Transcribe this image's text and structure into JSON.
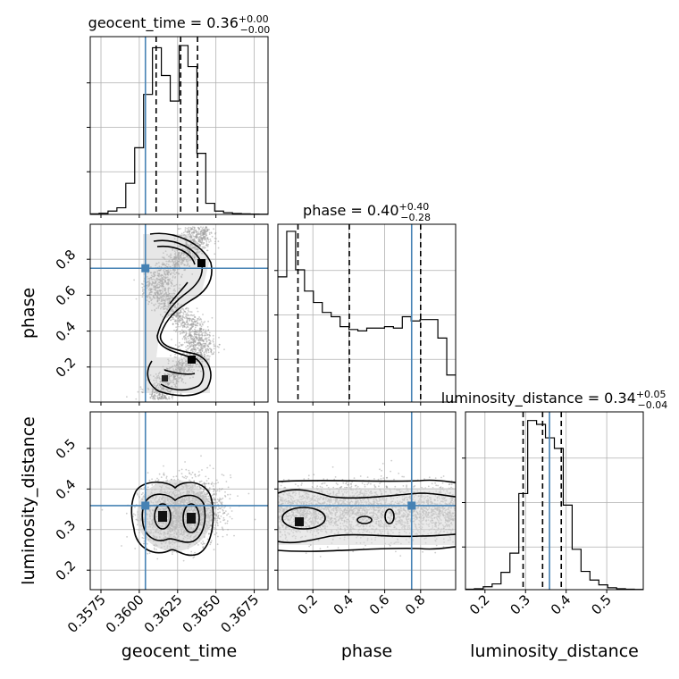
{
  "chart_data": {
    "type": "corner",
    "parameters": [
      "geocent_time",
      "phase",
      "luminosity_distance"
    ],
    "truth_color": "#4682b4",
    "panels": {
      "geocent_time": {
        "title_name": "geocent_time",
        "median": "0.36",
        "upper": "+0.00",
        "lower": "−0.00",
        "truth": 0.3604,
        "quantiles": [
          0.3611,
          0.3627,
          0.3638
        ],
        "xlim": [
          0.3568,
          0.3684
        ],
        "ticks": [
          0.3575,
          0.36,
          0.3625,
          0.365,
          0.3675
        ],
        "tick_labels": [
          "0.3575",
          "0.3600",
          "0.3625",
          "0.3650",
          "0.3675"
        ],
        "hist_edges": [
          0.3568,
          0.35738,
          0.35796,
          0.35854,
          0.35912,
          0.3597,
          0.36028,
          0.36086,
          0.36144,
          0.36202,
          0.3626,
          0.36318,
          0.36376,
          0.36434,
          0.36492,
          0.3655,
          0.36608,
          0.36666,
          0.36724,
          0.36782,
          0.3684
        ],
        "hist_counts": [
          0.5,
          1,
          3,
          6,
          28,
          60,
          108,
          150,
          125,
          102,
          152,
          133,
          55,
          10,
          3,
          1.5,
          0.8,
          0.5,
          0.3,
          0.2
        ],
        "hist_max": 160
      },
      "phase": {
        "title_name": "phase",
        "median": "0.40",
        "upper": "+0.40",
        "lower": "−0.28",
        "truth": 0.75,
        "quantiles": [
          0.117,
          0.403,
          0.8
        ],
        "xlim": [
          0.005,
          0.995
        ],
        "ticks": [
          0.2,
          0.4,
          0.6,
          0.8
        ],
        "tick_labels": [
          "0.2",
          "0.4",
          "0.6",
          "0.8"
        ],
        "hist_edges": [
          0.005,
          0.0545,
          0.104,
          0.1535,
          0.203,
          0.2525,
          0.302,
          0.3515,
          0.401,
          0.4505,
          0.5,
          0.5495,
          0.599,
          0.6485,
          0.698,
          0.7475,
          0.797,
          0.8465,
          0.896,
          0.9455,
          0.995
        ],
        "hist_counts": [
          88,
          120,
          93,
          78,
          70,
          63,
          60,
          53,
          51,
          50,
          52,
          52,
          53,
          52,
          60,
          57,
          58,
          58,
          45,
          19
        ],
        "hist_max": 125
      },
      "luminosity_distance": {
        "title_name": "luminosity_distance",
        "median": "0.34",
        "upper": "+0.05",
        "lower": "−0.04",
        "truth": 0.359,
        "quantiles": [
          0.294,
          0.342,
          0.388
        ],
        "xlim": [
          0.152,
          0.59
        ],
        "ticks": [
          0.2,
          0.3,
          0.4,
          0.5
        ],
        "tick_labels": [
          "0.2",
          "0.3",
          "0.4",
          "0.5"
        ],
        "hist_edges": [
          0.152,
          0.1739,
          0.1958,
          0.2177,
          0.2396,
          0.2615,
          0.2834,
          0.3053,
          0.3272,
          0.3491,
          0.371,
          0.3929,
          0.4148,
          0.4367,
          0.4586,
          0.4805,
          0.5024,
          0.5243,
          0.5462,
          0.5681,
          0.59
        ],
        "hist_counts": [
          0.5,
          1,
          3,
          6,
          18,
          38,
          100,
          176,
          172,
          158,
          147,
          88,
          42,
          19,
          10,
          5,
          2,
          1,
          0.5,
          0.3
        ],
        "hist_max": 185
      }
    },
    "pairs": [
      {
        "x": "geocent_time",
        "y": "phase",
        "ylim": [
          0.005,
          0.995
        ],
        "yticks": [
          0.2,
          0.4,
          0.6,
          0.8
        ],
        "ytick_labels": [
          "0.2",
          "0.4",
          "0.6",
          "0.8"
        ]
      },
      {
        "x": "geocent_time",
        "y": "luminosity_distance",
        "ylim": [
          0.152,
          0.59
        ],
        "yticks": [
          0.2,
          0.3,
          0.4,
          0.5
        ],
        "ytick_labels": [
          "0.2",
          "0.3",
          "0.4",
          "0.5"
        ]
      },
      {
        "x": "phase",
        "y": "luminosity_distance",
        "ylim": [
          0.152,
          0.59
        ],
        "yticks": [
          0.2,
          0.3,
          0.4,
          0.5
        ],
        "ytick_labels": [
          "0.2",
          "0.3",
          "0.4",
          "0.5"
        ]
      }
    ],
    "axis_labels": {
      "x": [
        "geocent_time",
        "phase",
        "luminosity_distance"
      ],
      "y": [
        "phase",
        "luminosity_distance"
      ]
    }
  }
}
